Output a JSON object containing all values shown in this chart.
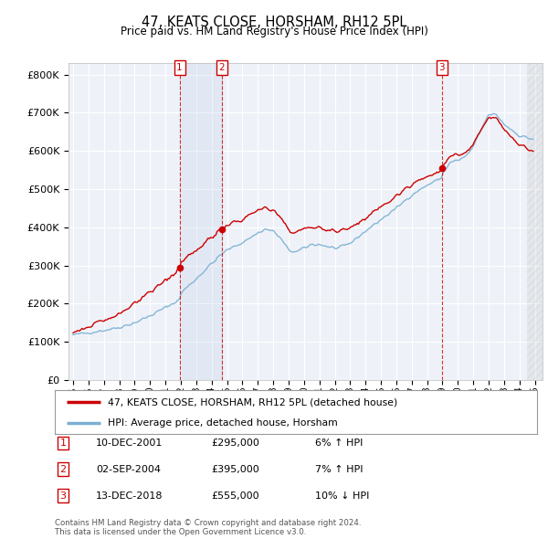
{
  "title": "47, KEATS CLOSE, HORSHAM, RH12 5PL",
  "subtitle": "Price paid vs. HM Land Registry's House Price Index (HPI)",
  "background_color": "#ffffff",
  "plot_bg_color": "#eef2f8",
  "grid_color": "#ffffff",
  "sale_color": "#cc0000",
  "hpi_color": "#7bafd4",
  "sale_label": "47, KEATS CLOSE, HORSHAM, RH12 5PL (detached house)",
  "hpi_label": "HPI: Average price, detached house, Horsham",
  "ylim": [
    0,
    830000
  ],
  "yticks": [
    0,
    100000,
    200000,
    300000,
    400000,
    500000,
    600000,
    700000,
    800000
  ],
  "ytick_labels": [
    "£0",
    "£100K",
    "£200K",
    "£300K",
    "£400K",
    "£500K",
    "£600K",
    "£700K",
    "£800K"
  ],
  "transactions": [
    {
      "num": 1,
      "date": "10-DEC-2001",
      "price": 295000,
      "year": 2001.917,
      "pct": "6%",
      "dir": "↑"
    },
    {
      "num": 2,
      "date": "02-SEP-2004",
      "price": 395000,
      "year": 2004.667,
      "pct": "7%",
      "dir": "↑"
    },
    {
      "num": 3,
      "date": "13-DEC-2018",
      "price": 555000,
      "year": 2018.958,
      "pct": "10%",
      "dir": "↓"
    }
  ],
  "footer": "Contains HM Land Registry data © Crown copyright and database right 2024.\nThis data is licensed under the Open Government Licence v3.0.",
  "xlim_left": 1994.7,
  "xlim_right": 2025.5
}
